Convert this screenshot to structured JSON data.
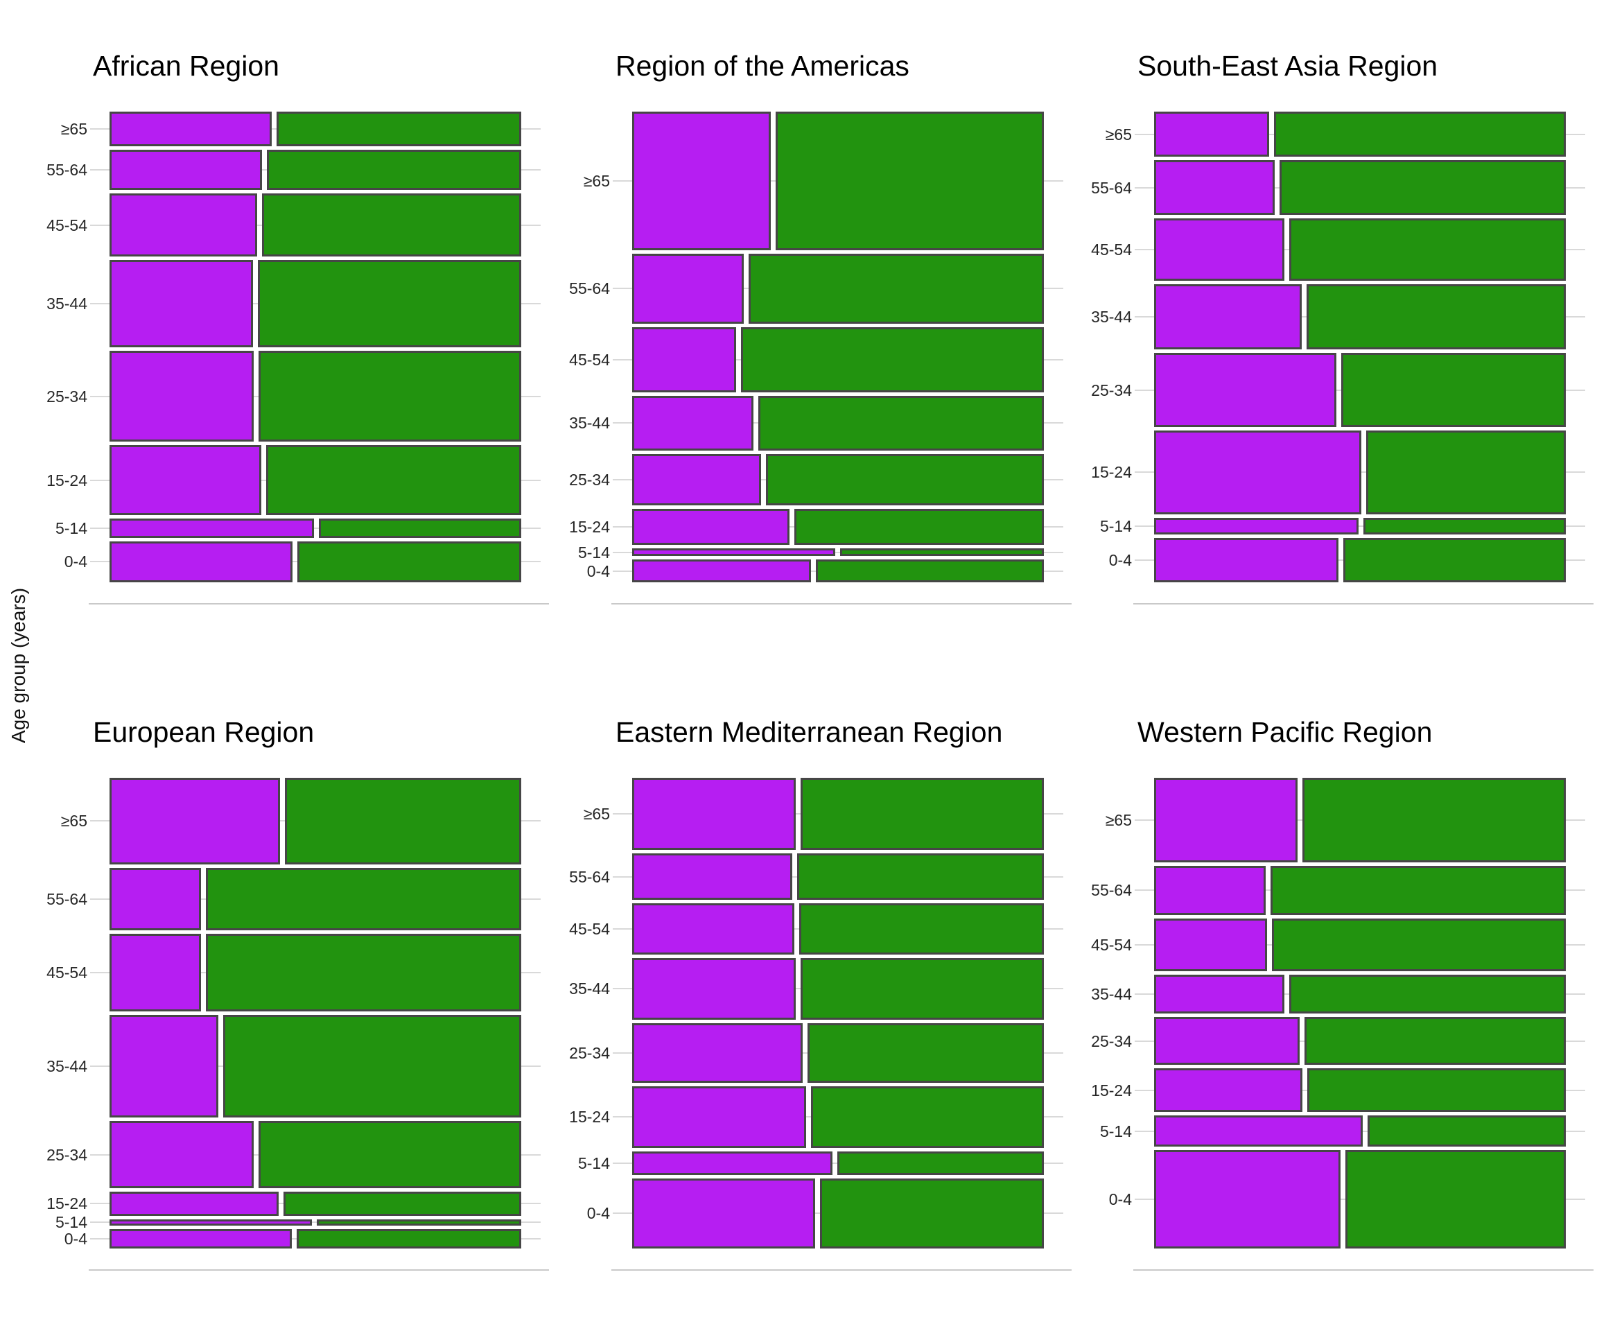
{
  "figure": {
    "ylabel": "Age group (years)",
    "age_groups": [
      "≥65",
      "55-64",
      "45-54",
      "35-44",
      "25-34",
      "15-24",
      "5-14",
      "0-4"
    ],
    "colors": {
      "purple_segment": "#b61ef2",
      "green_segment": "#22930f",
      "bar_border": "#464646",
      "gridline": "#d9d9d9",
      "axis_line": "#c9c9c9",
      "title_text": "#000000",
      "tick_text": "#262626"
    }
  },
  "chart_data": [
    {
      "type": "bar",
      "variant": "mosaic",
      "orientation": "horizontal",
      "title": "African Region",
      "categories": [
        "≥65",
        "55-64",
        "45-54",
        "35-44",
        "25-34",
        "15-24",
        "5-14",
        "0-4"
      ],
      "age_share": [
        0.078,
        0.09,
        0.141,
        0.196,
        0.203,
        0.157,
        0.043,
        0.092
      ],
      "purple_fraction": [
        0.399,
        0.375,
        0.363,
        0.353,
        0.356,
        0.373,
        0.501,
        0.45
      ],
      "green_fraction": [
        0.601,
        0.625,
        0.637,
        0.647,
        0.644,
        0.627,
        0.499,
        0.55
      ]
    },
    {
      "type": "bar",
      "variant": "mosaic",
      "orientation": "horizontal",
      "title": "Region of the Americas",
      "categories": [
        "≥65",
        "55-64",
        "45-54",
        "35-44",
        "25-34",
        "15-24",
        "5-14",
        "0-4"
      ],
      "age_share": [
        0.31,
        0.157,
        0.146,
        0.123,
        0.115,
        0.081,
        0.017,
        0.051
      ],
      "purple_fraction": [
        0.342,
        0.276,
        0.257,
        0.299,
        0.318,
        0.387,
        0.498,
        0.439
      ],
      "green_fraction": [
        0.658,
        0.724,
        0.743,
        0.701,
        0.682,
        0.613,
        0.502,
        0.561
      ]
    },
    {
      "type": "bar",
      "variant": "mosaic",
      "orientation": "horizontal",
      "title": "South-East Asia Region",
      "categories": [
        "≥65",
        "55-64",
        "45-54",
        "35-44",
        "25-34",
        "15-24",
        "5-14",
        "0-4"
      ],
      "age_share": [
        0.101,
        0.123,
        0.14,
        0.146,
        0.165,
        0.188,
        0.037,
        0.1
      ],
      "purple_fraction": [
        0.284,
        0.298,
        0.321,
        0.363,
        0.448,
        0.508,
        0.502,
        0.453
      ],
      "green_fraction": [
        0.716,
        0.702,
        0.679,
        0.637,
        0.552,
        0.492,
        0.498,
        0.547
      ]
    },
    {
      "type": "bar",
      "variant": "mosaic",
      "orientation": "horizontal",
      "title": "European Region",
      "categories": [
        "≥65",
        "55-64",
        "45-54",
        "35-44",
        "25-34",
        "15-24",
        "5-14",
        "0-4"
      ],
      "age_share": [
        0.194,
        0.14,
        0.174,
        0.23,
        0.15,
        0.054,
        0.014,
        0.044
      ],
      "purple_fraction": [
        0.419,
        0.227,
        0.228,
        0.269,
        0.355,
        0.415,
        0.496,
        0.447
      ],
      "green_fraction": [
        0.581,
        0.773,
        0.772,
        0.731,
        0.645,
        0.585,
        0.504,
        0.553
      ]
    },
    {
      "type": "bar",
      "variant": "mosaic",
      "orientation": "horizontal",
      "title": "Eastern Mediterranean Region",
      "categories": [
        "≥65",
        "55-64",
        "45-54",
        "35-44",
        "25-34",
        "15-24",
        "5-14",
        "0-4"
      ],
      "age_share": [
        0.162,
        0.104,
        0.114,
        0.138,
        0.134,
        0.138,
        0.053,
        0.157
      ],
      "purple_fraction": [
        0.402,
        0.394,
        0.399,
        0.403,
        0.42,
        0.428,
        0.492,
        0.45
      ],
      "green_fraction": [
        0.598,
        0.606,
        0.601,
        0.597,
        0.58,
        0.572,
        0.508,
        0.55
      ]
    },
    {
      "type": "bar",
      "variant": "mosaic",
      "orientation": "horizontal",
      "title": "Western Pacific Region",
      "categories": [
        "≥65",
        "55-64",
        "45-54",
        "35-44",
        "25-34",
        "15-24",
        "5-14",
        "0-4"
      ],
      "age_share": [
        0.189,
        0.11,
        0.119,
        0.087,
        0.107,
        0.098,
        0.07,
        0.22
      ],
      "purple_fraction": [
        0.353,
        0.276,
        0.279,
        0.321,
        0.359,
        0.365,
        0.511,
        0.458
      ],
      "green_fraction": [
        0.647,
        0.724,
        0.721,
        0.679,
        0.641,
        0.635,
        0.489,
        0.542
      ]
    }
  ]
}
